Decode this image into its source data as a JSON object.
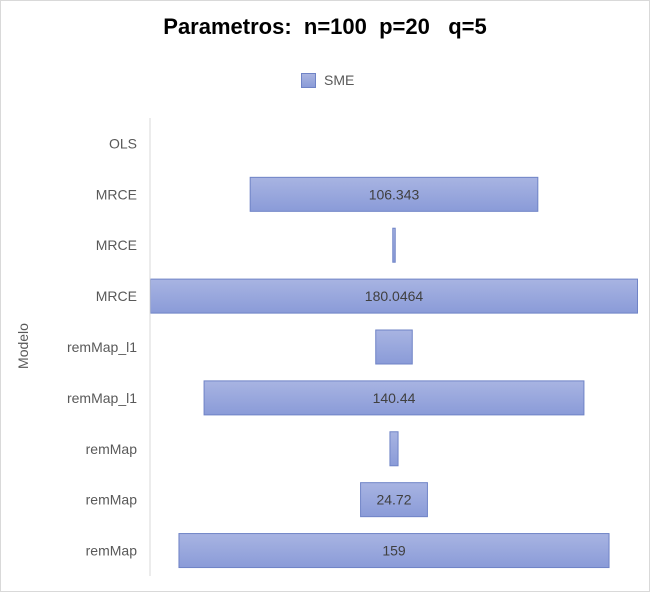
{
  "chart_data": {
    "type": "bar",
    "orientation": "horizontal",
    "layout": "centered-funnel",
    "title": "Parametros:  n=100  p=20   q=5",
    "ylabel": "Modelo",
    "xlabel": "",
    "legend": {
      "position": "top",
      "entries": [
        "SME"
      ]
    },
    "series": [
      {
        "name": "SME",
        "color": "#8fa0da",
        "border": "#6f83c6",
        "categories": [
          "OLS",
          "MRCE",
          "MRCE",
          "MRCE",
          "remMap_l1",
          "remMap_l1",
          "remMap",
          "remMap",
          "remMap"
        ],
        "values": [
          0,
          106.343,
          0.9,
          180.0464,
          13.5,
          140.44,
          3,
          24.72,
          159
        ],
        "labels": [
          "",
          "106.343",
          "",
          "180.0464",
          "",
          "140.44",
          "",
          "24.72",
          "159"
        ]
      }
    ],
    "grid": false
  }
}
